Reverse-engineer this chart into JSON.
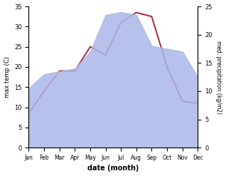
{
  "months": [
    "Jan",
    "Feb",
    "Mar",
    "Apr",
    "May",
    "Jun",
    "Jul",
    "Aug",
    "Sep",
    "Oct",
    "Nov",
    "Dec"
  ],
  "temp": [
    8.5,
    14.0,
    19.0,
    19.0,
    25.0,
    23.0,
    31.0,
    33.5,
    32.5,
    20.0,
    11.5,
    11.0
  ],
  "precip": [
    10.5,
    13.0,
    13.5,
    14.0,
    17.0,
    23.5,
    24.0,
    23.5,
    18.0,
    17.5,
    17.0,
    12.5
  ],
  "temp_color": "#b03040",
  "precip_color": "#aab8e8",
  "temp_ylim": [
    0,
    35
  ],
  "precip_ylim": [
    0,
    25
  ],
  "temp_yticks": [
    0,
    5,
    10,
    15,
    20,
    25,
    30,
    35
  ],
  "precip_yticks": [
    0,
    5,
    10,
    15,
    20,
    25
  ],
  "xlabel": "date (month)",
  "ylabel_left": "max temp (C)",
  "ylabel_right": "med. precipitation (kg/m2)",
  "bg_color": "#ffffff"
}
